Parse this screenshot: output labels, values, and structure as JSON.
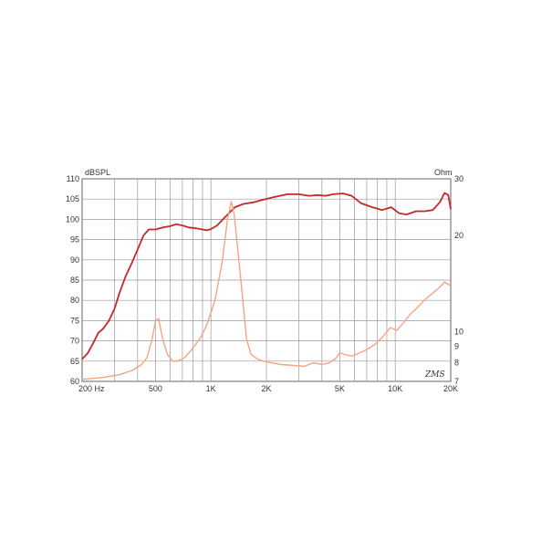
{
  "chart_data": {
    "type": "line",
    "left_axis_label": "dBSPL",
    "right_axis_label": "Ohm",
    "x_scale": "log",
    "x_range_hz": [
      200,
      20000
    ],
    "y_left_range": [
      60,
      110
    ],
    "y_right_range": [
      7,
      30
    ],
    "grid": true,
    "x_tick_labels": [
      {
        "hz": 200,
        "label": "200  Hz"
      },
      {
        "hz": 500,
        "label": "500"
      },
      {
        "hz": 1000,
        "label": "1K"
      },
      {
        "hz": 2000,
        "label": "2K"
      },
      {
        "hz": 5000,
        "label": "5K"
      },
      {
        "hz": 10000,
        "label": "10K"
      },
      {
        "hz": 20000,
        "label": "20K"
      }
    ],
    "y_left_ticks": [
      60,
      65,
      70,
      75,
      80,
      85,
      90,
      95,
      100,
      105,
      110
    ],
    "y_right_ticks": [
      {
        "value": 7,
        "label": "7"
      },
      {
        "value": 8,
        "label": "8"
      },
      {
        "value": 9,
        "label": "9"
      },
      {
        "value": 10,
        "label": "10"
      },
      {
        "value": 20,
        "label": "20"
      },
      {
        "value": 30,
        "label": "30"
      }
    ],
    "series": [
      {
        "color": "#c62828",
        "axis": "left",
        "points": [
          [
            200,
            65.5
          ],
          [
            215,
            67
          ],
          [
            230,
            69.5
          ],
          [
            245,
            72
          ],
          [
            260,
            73
          ],
          [
            280,
            75
          ],
          [
            300,
            78
          ],
          [
            320,
            82
          ],
          [
            345,
            86
          ],
          [
            370,
            89
          ],
          [
            400,
            92.5
          ],
          [
            430,
            96
          ],
          [
            460,
            97.5
          ],
          [
            500,
            97.5
          ],
          [
            550,
            98
          ],
          [
            600,
            98.3
          ],
          [
            650,
            98.8
          ],
          [
            700,
            98.5
          ],
          [
            760,
            98
          ],
          [
            830,
            97.8
          ],
          [
            900,
            97.5
          ],
          [
            950,
            97.3
          ],
          [
            1000,
            97.6
          ],
          [
            1080,
            98.5
          ],
          [
            1150,
            99.8
          ],
          [
            1250,
            101.5
          ],
          [
            1350,
            103
          ],
          [
            1500,
            103.8
          ],
          [
            1700,
            104.2
          ],
          [
            1900,
            104.8
          ],
          [
            2200,
            105.5
          ],
          [
            2600,
            106.2
          ],
          [
            3000,
            106.2
          ],
          [
            3400,
            105.8
          ],
          [
            3800,
            106
          ],
          [
            4200,
            105.8
          ],
          [
            4600,
            106.2
          ],
          [
            5200,
            106.4
          ],
          [
            5800,
            105.8
          ],
          [
            6500,
            104
          ],
          [
            7500,
            103
          ],
          [
            8500,
            102.3
          ],
          [
            9500,
            103
          ],
          [
            10500,
            101.5
          ],
          [
            11500,
            101.2
          ],
          [
            13000,
            102
          ],
          [
            14500,
            102
          ],
          [
            16000,
            102.3
          ],
          [
            17500,
            104.3
          ],
          [
            18500,
            106.5
          ],
          [
            19400,
            106
          ],
          [
            20000,
            102.5
          ]
        ]
      },
      {
        "color": "#f4a582",
        "axis": "right",
        "points": [
          [
            200,
            7.1
          ],
          [
            260,
            7.2
          ],
          [
            320,
            7.35
          ],
          [
            380,
            7.6
          ],
          [
            420,
            7.9
          ],
          [
            450,
            8.3
          ],
          [
            480,
            9.5
          ],
          [
            500,
            10.8
          ],
          [
            520,
            11
          ],
          [
            545,
            9.6
          ],
          [
            580,
            8.5
          ],
          [
            620,
            8.1
          ],
          [
            660,
            8.1
          ],
          [
            720,
            8.3
          ],
          [
            800,
            8.9
          ],
          [
            880,
            9.6
          ],
          [
            950,
            10.5
          ],
          [
            1050,
            12.5
          ],
          [
            1150,
            16.5
          ],
          [
            1230,
            22.5
          ],
          [
            1290,
            25.5
          ],
          [
            1340,
            23
          ],
          [
            1400,
            18
          ],
          [
            1480,
            13
          ],
          [
            1560,
            9.5
          ],
          [
            1650,
            8.5
          ],
          [
            1800,
            8.2
          ],
          [
            2000,
            8.05
          ],
          [
            2400,
            7.9
          ],
          [
            2800,
            7.85
          ],
          [
            3200,
            7.8
          ],
          [
            3600,
            8.0
          ],
          [
            4000,
            7.9
          ],
          [
            4400,
            8.0
          ],
          [
            4800,
            8.3
          ],
          [
            5000,
            8.6
          ],
          [
            5300,
            8.5
          ],
          [
            5800,
            8.4
          ],
          [
            6300,
            8.55
          ],
          [
            7000,
            8.8
          ],
          [
            7700,
            9.1
          ],
          [
            8500,
            9.6
          ],
          [
            9400,
            10.3
          ],
          [
            10200,
            10.1
          ],
          [
            11000,
            10.6
          ],
          [
            12000,
            11.3
          ],
          [
            13000,
            11.8
          ],
          [
            14500,
            12.6
          ],
          [
            16000,
            13.2
          ],
          [
            17500,
            13.8
          ],
          [
            18500,
            14.3
          ],
          [
            19500,
            14.0
          ],
          [
            20000,
            14.1
          ]
        ]
      }
    ],
    "annotation": "ZMS"
  }
}
